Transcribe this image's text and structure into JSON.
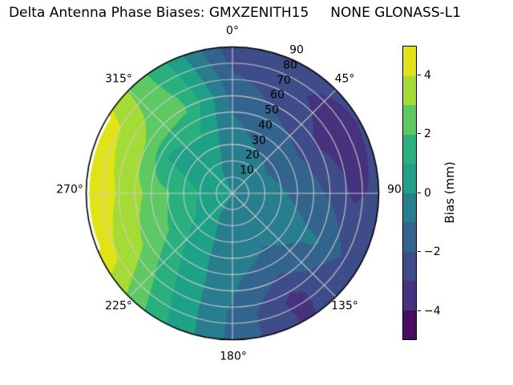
{
  "title": "Delta Antenna Phase Biases: GMXZENITH15     NONE GLONASS-L1",
  "chart_data": {
    "type": "heatmap",
    "subtype": "polar_filled_contour",
    "title": "Delta Antenna Phase Biases: GMXZENITH15     NONE GLONASS-L1",
    "antenna": "GMXZENITH15",
    "comparison": "NONE",
    "signal": "GLONASS-L1",
    "azimuth_labels": [
      "0°",
      "45°",
      "90",
      "135°",
      "180°",
      "225°",
      "270°",
      "315°"
    ],
    "azimuth_label_degs": [
      0,
      45,
      90,
      135,
      180,
      225,
      270,
      315
    ],
    "radial_ticks": [
      "10",
      "20",
      "30",
      "40",
      "50",
      "60",
      "70",
      "80",
      "90"
    ],
    "radial_axis": {
      "min": 0,
      "max": 90,
      "ring_step": 10,
      "tick_label_azimuth_deg": 22.5
    },
    "grid": {
      "spoke_step_deg": 45,
      "line_color": "#cdcdcd",
      "outline_color": "#000000"
    },
    "colorbar": {
      "label": "Bias (mm)",
      "range": [
        -5,
        5
      ],
      "ticks": [
        4,
        2,
        0,
        -2,
        -4
      ],
      "tick_labels": [
        "4",
        "2",
        "0",
        "−2",
        "−4"
      ],
      "band_colors": [
        "#470d60",
        "#46327e",
        "#3e4c8a",
        "#32648e",
        "#287d8e",
        "#1fa188",
        "#2ab07f",
        "#5ec962",
        "#a5db36",
        "#dfe318"
      ]
    },
    "field": {
      "units": "mm",
      "azimuths_deg": [
        0,
        30,
        60,
        90,
        120,
        150,
        180,
        210,
        240,
        270,
        300,
        330
      ],
      "zeniths_deg": [
        0,
        15,
        30,
        45,
        60,
        75,
        90
      ],
      "bias_mm": [
        [
          0.0,
          0.0,
          0.0,
          0.0,
          0.0,
          0.0,
          0.0,
          0.0,
          0.0,
          0.0,
          0.0,
          0.0
        ],
        [
          -0.4,
          -0.6,
          -0.7,
          -0.6,
          -0.5,
          -0.5,
          -0.3,
          0.0,
          0.5,
          0.7,
          0.5,
          0.1
        ],
        [
          -0.6,
          -1.0,
          -1.2,
          -0.9,
          -0.7,
          -0.8,
          -0.5,
          0.2,
          1.2,
          1.5,
          0.7,
          0.6
        ],
        [
          -0.9,
          -1.5,
          -1.9,
          -1.3,
          -0.8,
          -1.2,
          -0.7,
          0.4,
          2.0,
          2.4,
          0.9,
          1.3
        ],
        [
          -1.3,
          -2.3,
          -3.1,
          -2.2,
          -0.9,
          -2.2,
          -0.9,
          0.7,
          2.8,
          3.3,
          2.9,
          2.2
        ],
        [
          -2.0,
          -2.8,
          -3.6,
          -3.2,
          -1.9,
          -3.3,
          -1.2,
          1.0,
          3.7,
          4.2,
          3.8,
          1.8
        ],
        [
          -2.7,
          -2.8,
          -2.9,
          -2.8,
          -2.5,
          -3.1,
          -1.3,
          1.3,
          4.4,
          4.8,
          4.5,
          1.4
        ]
      ]
    }
  }
}
